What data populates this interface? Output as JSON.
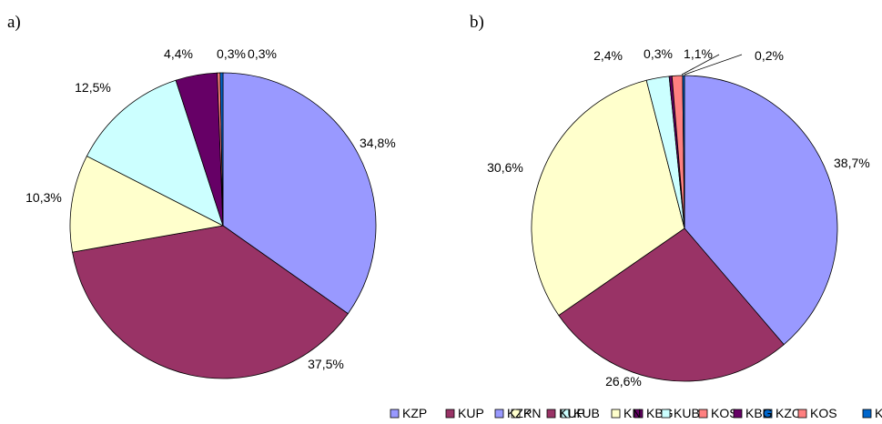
{
  "chart_data": [
    {
      "type": "pie",
      "panel_label": "a)",
      "categories": [
        "KZP",
        "KUP",
        "KN",
        "KUB",
        "KBG",
        "KOS",
        "KZO"
      ],
      "values": [
        34.8,
        37.5,
        10.3,
        12.5,
        4.4,
        0.3,
        0.3
      ],
      "value_labels": [
        "34,8%",
        "37,5%",
        "10,3%",
        "12,5%",
        "4,4%",
        "0,3%",
        "0,3%"
      ],
      "colors": [
        "#9999ff",
        "#993366",
        "#ffffcc",
        "#ccffff",
        "#660066",
        "#ff8080",
        "#0066cc"
      ],
      "legend_position": "bottom"
    },
    {
      "type": "pie",
      "panel_label": "b)",
      "categories": [
        "KZP",
        "KUP",
        "KN",
        "KUB",
        "KBG",
        "KOS",
        "KZO"
      ],
      "values": [
        38.7,
        26.6,
        30.6,
        2.4,
        0.3,
        1.1,
        0.2
      ],
      "value_labels": [
        "38,7%",
        "26,6%",
        "30,6%",
        "2,4%",
        "0,3%",
        "1,1%",
        "0,2%"
      ],
      "colors": [
        "#9999ff",
        "#993366",
        "#ffffcc",
        "#ccffff",
        "#660066",
        "#ff8080",
        "#0066cc"
      ],
      "legend_position": "bottom"
    }
  ]
}
